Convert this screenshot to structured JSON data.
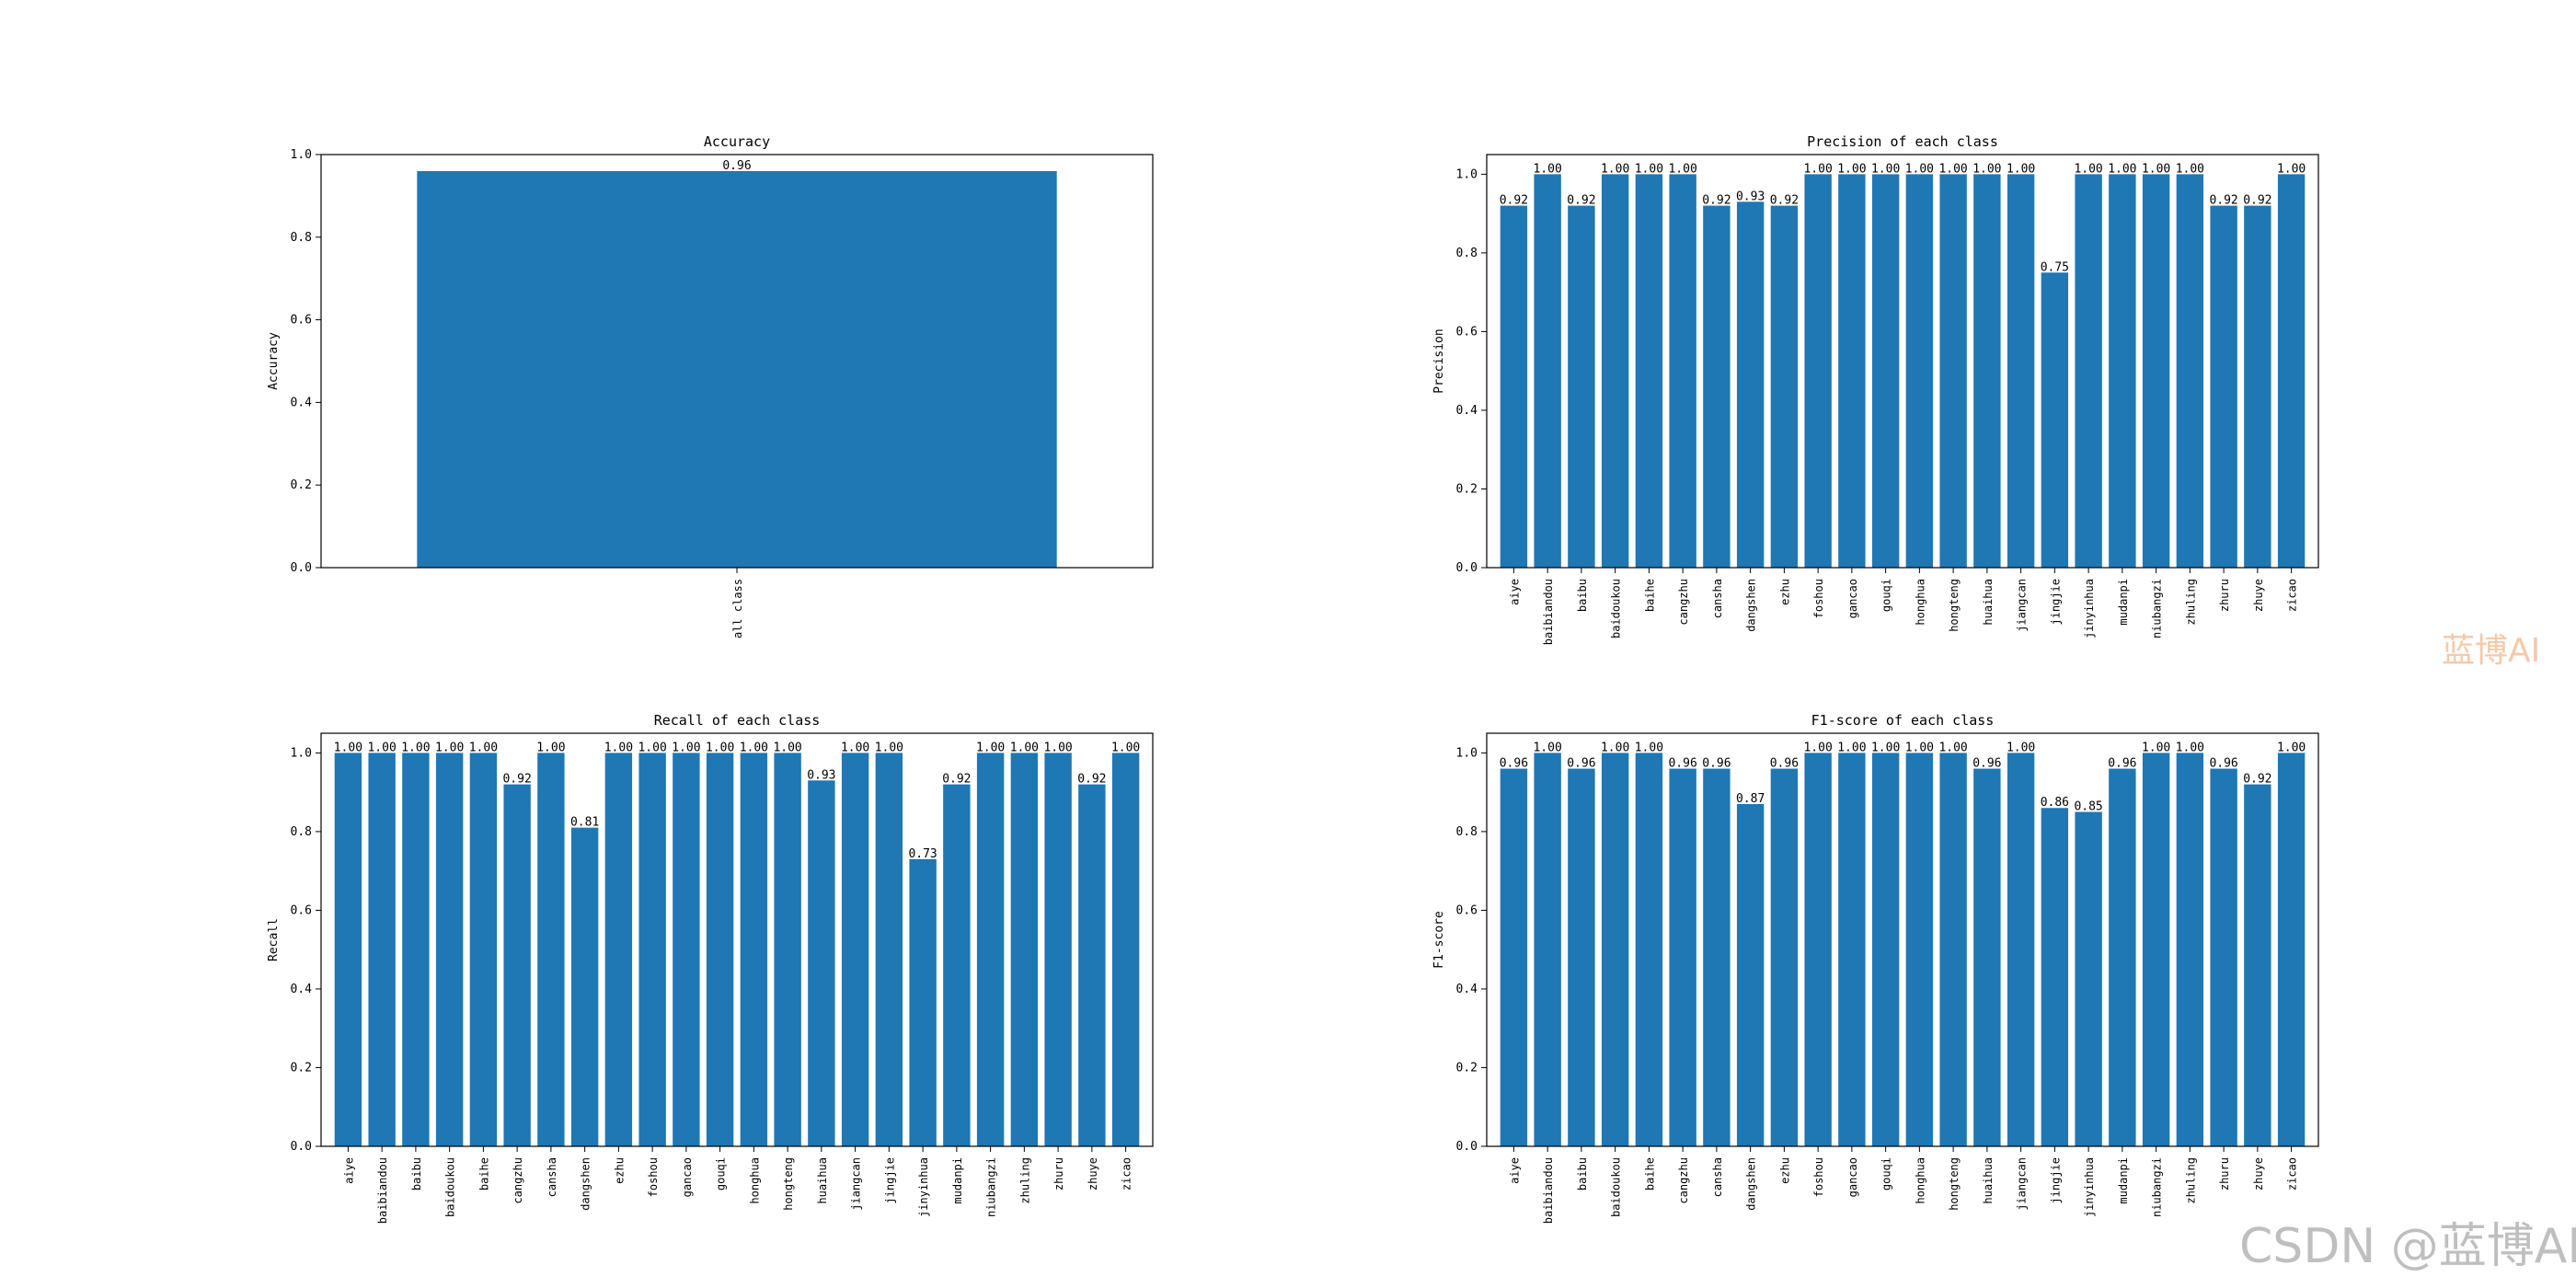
{
  "chart_data": [
    {
      "type": "bar",
      "title": "Accuracy",
      "xlabel": "",
      "ylabel": "Accuracy",
      "categories": [
        "all class"
      ],
      "values": [
        0.96
      ],
      "labels": [
        "0.96"
      ],
      "ylim": [
        0,
        1.0
      ],
      "yticks": [
        "0.0",
        "0.2",
        "0.4",
        "0.6",
        "0.8",
        "1.0"
      ],
      "grid": false,
      "color": "#1f77b4"
    },
    {
      "type": "bar",
      "title": "Precision of each class",
      "xlabel": "",
      "ylabel": "Precision",
      "categories": [
        "aiye",
        "baibiandou",
        "baibu",
        "baidoukou",
        "baihe",
        "cangzhu",
        "cansha",
        "dangshen",
        "ezhu",
        "foshou",
        "gancao",
        "gouqi",
        "honghua",
        "hongteng",
        "huaihua",
        "jiangcan",
        "jingjie",
        "jinyinhua",
        "mudanpi",
        "niubangzi",
        "zhuling",
        "zhuru",
        "zhuye",
        "zicao"
      ],
      "values": [
        0.92,
        1.0,
        0.92,
        1.0,
        1.0,
        1.0,
        0.92,
        0.93,
        0.92,
        1.0,
        1.0,
        1.0,
        1.0,
        1.0,
        1.0,
        1.0,
        0.75,
        1.0,
        1.0,
        1.0,
        1.0,
        0.92,
        0.92,
        1.0
      ],
      "labels": [
        "0.92",
        "1.00",
        "0.92",
        "1.00",
        "1.00",
        "1.00",
        "0.92",
        "0.93",
        "0.92",
        "1.00",
        "1.00",
        "1.00",
        "1.00",
        "1.00",
        "1.00",
        "1.00",
        "0.75",
        "1.00",
        "1.00",
        "1.00",
        "1.00",
        "0.92",
        "0.92",
        "1.00"
      ],
      "ylim": [
        0,
        1.05
      ],
      "yticks": [
        "0.0",
        "0.2",
        "0.4",
        "0.6",
        "0.8",
        "1.0"
      ],
      "grid": false,
      "color": "#1f77b4"
    },
    {
      "type": "bar",
      "title": "Recall of each class",
      "xlabel": "",
      "ylabel": "Recall",
      "categories": [
        "aiye",
        "baibiandou",
        "baibu",
        "baidoukou",
        "baihe",
        "cangzhu",
        "cansha",
        "dangshen",
        "ezhu",
        "foshou",
        "gancao",
        "gouqi",
        "honghua",
        "hongteng",
        "huaihua",
        "jiangcan",
        "jingjie",
        "jinyinhua",
        "mudanpi",
        "niubangzi",
        "zhuling",
        "zhuru",
        "zhuye",
        "zicao"
      ],
      "values": [
        1.0,
        1.0,
        1.0,
        1.0,
        1.0,
        0.92,
        1.0,
        0.81,
        1.0,
        1.0,
        1.0,
        1.0,
        1.0,
        1.0,
        0.93,
        1.0,
        1.0,
        0.73,
        0.92,
        1.0,
        1.0,
        1.0,
        0.92,
        1.0
      ],
      "labels": [
        "1.00",
        "1.00",
        "1.00",
        "1.00",
        "1.00",
        "0.92",
        "1.00",
        "0.81",
        "1.00",
        "1.00",
        "1.00",
        "1.00",
        "1.00",
        "1.00",
        "0.93",
        "1.00",
        "1.00",
        "0.73",
        "0.92",
        "1.00",
        "1.00",
        "1.00",
        "0.92",
        "1.00"
      ],
      "ylim": [
        0,
        1.05
      ],
      "yticks": [
        "0.0",
        "0.2",
        "0.4",
        "0.6",
        "0.8",
        "1.0"
      ],
      "grid": false,
      "color": "#1f77b4"
    },
    {
      "type": "bar",
      "title": "F1-score of each class",
      "xlabel": "",
      "ylabel": "F1-score",
      "categories": [
        "aiye",
        "baibiandou",
        "baibu",
        "baidoukou",
        "baihe",
        "cangzhu",
        "cansha",
        "dangshen",
        "ezhu",
        "foshou",
        "gancao",
        "gouqi",
        "honghua",
        "hongteng",
        "huaihua",
        "jiangcan",
        "jingjie",
        "jinyinhua",
        "mudanpi",
        "niubangzi",
        "zhuling",
        "zhuru",
        "zhuye",
        "zicao"
      ],
      "values": [
        0.96,
        1.0,
        0.96,
        1.0,
        1.0,
        0.96,
        0.96,
        0.87,
        0.96,
        1.0,
        1.0,
        1.0,
        1.0,
        1.0,
        0.96,
        1.0,
        0.86,
        0.85,
        0.96,
        1.0,
        1.0,
        0.96,
        0.92,
        1.0
      ],
      "labels": [
        "0.96",
        "1.00",
        "0.96",
        "1.00",
        "1.00",
        "0.96",
        "0.96",
        "0.87",
        "0.96",
        "1.00",
        "1.00",
        "1.00",
        "1.00",
        "1.00",
        "0.96",
        "1.00",
        "0.86",
        "0.85",
        "0.96",
        "1.00",
        "1.00",
        "0.96",
        "0.92",
        "1.00"
      ],
      "ylim": [
        0,
        1.05
      ],
      "yticks": [
        "0.0",
        "0.2",
        "0.4",
        "0.6",
        "0.8",
        "1.0"
      ],
      "grid": false,
      "color": "#1f77b4"
    }
  ],
  "watermarks": {
    "middle": "蓝博AI",
    "bottom": "CSDN @蓝博AI"
  }
}
